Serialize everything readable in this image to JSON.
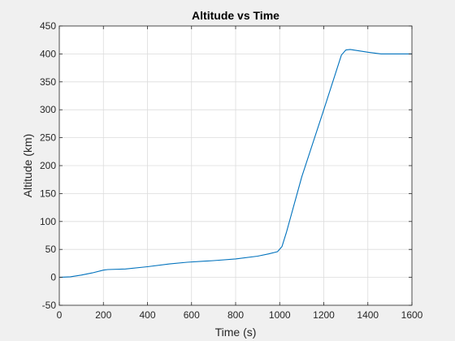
{
  "chart_data": {
    "type": "line",
    "title": "Altitude vs Time",
    "xlabel": "Time (s)",
    "ylabel": "Altitude (km)",
    "xlim": [
      0,
      1600
    ],
    "ylim": [
      -50,
      450
    ],
    "xticks": [
      0,
      200,
      400,
      600,
      800,
      1000,
      1200,
      1400,
      1600
    ],
    "yticks": [
      -50,
      0,
      50,
      100,
      150,
      200,
      250,
      300,
      350,
      400,
      450
    ],
    "grid": true,
    "series": [
      {
        "color": "#0072bd",
        "x": [
          0,
          50,
          100,
          150,
          200,
          220,
          300,
          400,
          500,
          580,
          700,
          800,
          900,
          950,
          990,
          1010,
          1030,
          1100,
          1200,
          1280,
          1300,
          1320,
          1400,
          1460,
          1600
        ],
        "y": [
          0,
          1,
          4,
          8,
          13,
          14,
          15,
          19,
          24,
          27,
          30,
          33,
          38,
          42,
          46,
          55,
          80,
          180,
          300,
          398,
          407,
          408,
          403,
          400,
          400
        ]
      }
    ]
  }
}
